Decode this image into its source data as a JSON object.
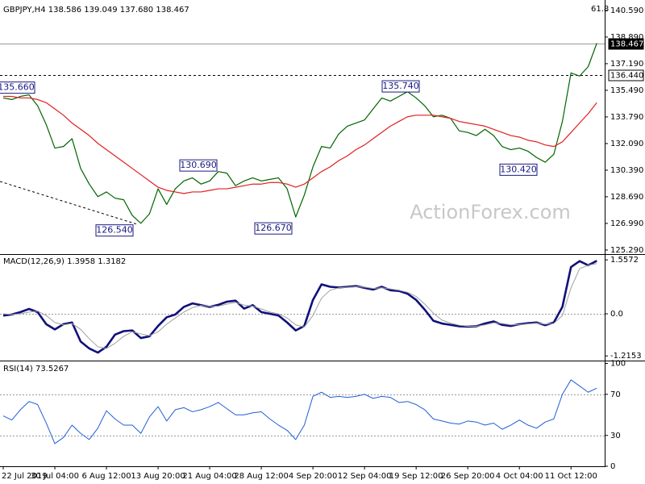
{
  "chart_data": [
    {
      "type": "line",
      "title": "GBPJPY,H4  138.586 139.049 137.680 138.467",
      "fib_label": "61.8",
      "watermark": "ActionForex.com",
      "ylim": [
        125.03,
        141.05
      ],
      "yticks": [
        {
          "value": 140.59,
          "label": "140.590"
        },
        {
          "value": 138.89,
          "label": "138.890"
        },
        {
          "value": 137.19,
          "label": "137.190"
        },
        {
          "value": 135.49,
          "label": "135.490"
        },
        {
          "value": 133.79,
          "label": "133.790"
        },
        {
          "value": 132.09,
          "label": "132.090"
        },
        {
          "value": 130.39,
          "label": "130.390"
        },
        {
          "value": 128.69,
          "label": "128.690"
        },
        {
          "value": 126.99,
          "label": "126.990"
        },
        {
          "value": 125.29,
          "label": "125.290"
        }
      ],
      "series": [
        {
          "color": "#006400",
          "width": 1.2,
          "values": [
            135.0,
            134.9,
            135.1,
            135.2,
            134.5,
            133.3,
            131.8,
            131.9,
            132.4,
            130.5,
            129.5,
            128.7,
            129.0,
            128.6,
            128.5,
            127.5,
            127.0,
            127.6,
            129.2,
            128.2,
            129.2,
            129.7,
            129.9,
            129.5,
            129.7,
            130.3,
            130.2,
            129.4,
            129.7,
            129.9,
            129.7,
            129.8,
            129.9,
            129.2,
            127.4,
            128.8,
            130.6,
            131.9,
            131.8,
            132.7,
            133.2,
            133.4,
            133.6,
            134.3,
            135.0,
            134.8,
            135.1,
            135.4,
            135.0,
            134.5,
            133.8,
            133.9,
            133.7,
            132.9,
            132.8,
            132.6,
            133.0,
            132.6,
            131.9,
            131.7,
            131.8,
            131.6,
            131.2,
            130.9,
            131.4,
            133.5,
            136.6,
            136.4,
            137.0,
            138.5
          ]
        },
        {
          "color": "#e02020",
          "width": 1.2,
          "values": [
            135.1,
            135.1,
            135.0,
            135.0,
            134.9,
            134.7,
            134.3,
            133.9,
            133.4,
            133.0,
            132.6,
            132.1,
            131.7,
            131.3,
            130.9,
            130.5,
            130.1,
            129.7,
            129.3,
            129.1,
            129.0,
            128.9,
            129.0,
            129.0,
            129.1,
            129.2,
            129.2,
            129.3,
            129.4,
            129.5,
            129.5,
            129.6,
            129.6,
            129.5,
            129.3,
            129.5,
            129.9,
            130.3,
            130.6,
            131.0,
            131.3,
            131.7,
            132.0,
            132.4,
            132.8,
            133.2,
            133.5,
            133.8,
            133.9,
            133.9,
            133.9,
            133.8,
            133.7,
            133.5,
            133.4,
            133.3,
            133.2,
            133.0,
            132.8,
            132.6,
            132.5,
            132.3,
            132.2,
            132.0,
            131.9,
            132.2,
            132.8,
            133.4,
            134.0,
            134.7
          ]
        }
      ],
      "levels": [
        {
          "value": 138.467,
          "label": "138.467",
          "dashed": false
        },
        {
          "value": 136.44,
          "label": "136.440",
          "dashed": true
        }
      ],
      "annotations": [
        {
          "value": 135.66,
          "label": "135.660"
        },
        {
          "value": 135.74,
          "label": "135.740"
        },
        {
          "value": 130.69,
          "label": "130.690"
        },
        {
          "value": 126.54,
          "label": "126.540"
        },
        {
          "value": 126.67,
          "label": "126.670"
        },
        {
          "value": 130.42,
          "label": "130.420"
        }
      ]
    },
    {
      "type": "line",
      "title": "MACD(12,26,9) 1.3958 1.3182",
      "ylim": [
        -1.35,
        1.7
      ],
      "yticks": [
        1.5572,
        {
          "value": 0,
          "label": "0.0"
        },
        -1.2153
      ],
      "hlines": [
        0
      ],
      "series": [
        {
          "color": "#10107a",
          "width": 2.6,
          "values": [
            -0.05,
            -0.02,
            0.05,
            0.14,
            0.05,
            -0.3,
            -0.45,
            -0.3,
            -0.25,
            -0.8,
            -1.0,
            -1.12,
            -0.95,
            -0.6,
            -0.5,
            -0.48,
            -0.7,
            -0.65,
            -0.35,
            -0.1,
            -0.02,
            0.2,
            0.3,
            0.25,
            0.2,
            0.26,
            0.35,
            0.38,
            0.15,
            0.25,
            0.05,
            0.0,
            -0.05,
            -0.25,
            -0.48,
            -0.35,
            0.4,
            0.85,
            0.78,
            0.76,
            0.78,
            0.8,
            0.75,
            0.7,
            0.78,
            0.68,
            0.66,
            0.58,
            0.4,
            0.12,
            -0.2,
            -0.28,
            -0.32,
            -0.36,
            -0.37,
            -0.36,
            -0.28,
            -0.22,
            -0.32,
            -0.35,
            -0.3,
            -0.27,
            -0.25,
            -0.33,
            -0.25,
            0.2,
            1.35,
            1.52,
            1.4,
            1.53
          ]
        },
        {
          "color": "#a0a0a0",
          "width": 1,
          "values": [
            0.0,
            -0.02,
            0.0,
            0.05,
            0.08,
            -0.05,
            -0.25,
            -0.32,
            -0.28,
            -0.45,
            -0.72,
            -0.95,
            -1.0,
            -0.85,
            -0.65,
            -0.52,
            -0.58,
            -0.63,
            -0.52,
            -0.3,
            -0.12,
            0.05,
            0.18,
            0.24,
            0.22,
            0.22,
            0.28,
            0.33,
            0.25,
            0.22,
            0.14,
            0.05,
            0.0,
            -0.12,
            -0.32,
            -0.38,
            -0.05,
            0.45,
            0.68,
            0.75,
            0.77,
            0.78,
            0.77,
            0.73,
            0.75,
            0.72,
            0.68,
            0.62,
            0.5,
            0.28,
            0.02,
            -0.18,
            -0.27,
            -0.33,
            -0.36,
            -0.36,
            -0.32,
            -0.26,
            -0.28,
            -0.32,
            -0.31,
            -0.29,
            -0.27,
            -0.3,
            -0.28,
            -0.05,
            0.75,
            1.3,
            1.4,
            1.45
          ]
        }
      ]
    },
    {
      "type": "line",
      "title": "RSI(14) 73.5267",
      "ylim": [
        0,
        102
      ],
      "yticks": [
        100,
        70,
        30,
        0
      ],
      "hlines": [
        70,
        30
      ],
      "categories": [
        "22 Jul 2019",
        null,
        null,
        null,
        null,
        null,
        "30 Jul 04:00",
        null,
        null,
        null,
        null,
        null,
        "6 Aug 12:00",
        null,
        null,
        null,
        null,
        null,
        "13 Aug 20:00",
        null,
        null,
        null,
        null,
        null,
        "21 Aug 04:00",
        null,
        null,
        null,
        null,
        null,
        "28 Aug 12:00",
        null,
        null,
        null,
        null,
        null,
        "4 Sep 20:00",
        null,
        null,
        null,
        null,
        null,
        "12 Sep 04:00",
        null,
        null,
        null,
        null,
        null,
        "19 Sep 12:00",
        null,
        null,
        null,
        null,
        null,
        "26 Sep 20:00",
        null,
        null,
        null,
        null,
        null,
        "4 Oct 04:00",
        null,
        null,
        null,
        null,
        null,
        "11 Oct 12:00",
        null,
        null,
        null
      ],
      "series": [
        {
          "color": "#1f5fd6",
          "width": 1,
          "values": [
            49,
            45,
            55,
            63,
            60,
            42,
            22,
            28,
            40,
            32,
            26,
            37,
            54,
            46,
            40,
            40,
            32,
            48,
            58,
            44,
            55,
            57,
            53,
            55,
            58,
            62,
            56,
            50,
            50,
            52,
            53,
            46,
            40,
            35,
            26,
            40,
            68,
            72,
            67,
            68,
            67,
            68,
            70,
            66,
            68,
            67,
            62,
            63,
            60,
            55,
            46,
            44,
            42,
            41,
            44,
            43,
            40,
            42,
            36,
            40,
            45,
            40,
            37,
            43,
            46,
            70,
            84,
            78,
            72,
            76
          ]
        }
      ]
    }
  ]
}
